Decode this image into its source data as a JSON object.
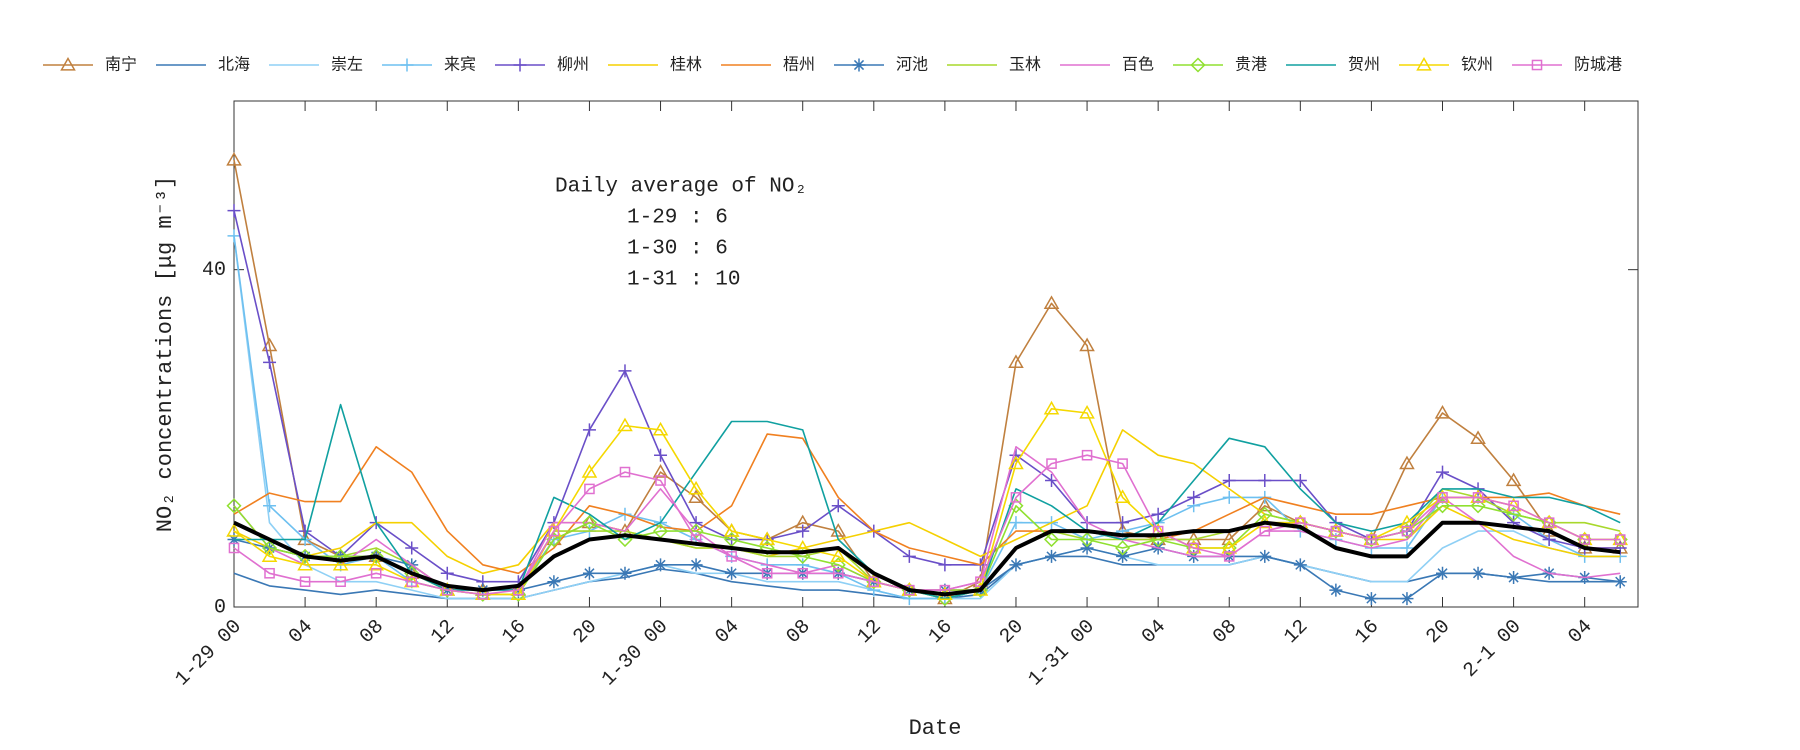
{
  "chart_data": {
    "type": "line",
    "ylabel": "NO₂ concentrations [μg m⁻³]",
    "xlabel": "Date",
    "annotation": [
      "Daily average of NO₂",
      "1-29 : 6",
      "1-30 : 6",
      "1-31 : 10"
    ],
    "x": [
      0,
      2,
      4,
      6,
      8,
      10,
      12,
      14,
      16,
      18,
      20,
      22,
      24,
      26,
      28,
      30,
      32,
      34,
      36,
      38,
      40,
      42,
      44,
      46,
      48,
      50,
      52,
      54,
      56,
      58,
      60,
      62,
      64,
      66,
      68,
      70,
      72,
      74,
      76,
      78
    ],
    "xlim": [
      0,
      79
    ],
    "xticks": [
      {
        "value": 0,
        "label": "1-29 00"
      },
      {
        "value": 4,
        "label": "04"
      },
      {
        "value": 8,
        "label": "08"
      },
      {
        "value": 12,
        "label": "12"
      },
      {
        "value": 16,
        "label": "16"
      },
      {
        "value": 20,
        "label": "20"
      },
      {
        "value": 24,
        "label": "1-30 00"
      },
      {
        "value": 28,
        "label": "04"
      },
      {
        "value": 32,
        "label": "08"
      },
      {
        "value": 36,
        "label": "12"
      },
      {
        "value": 40,
        "label": "16"
      },
      {
        "value": 44,
        "label": "20"
      },
      {
        "value": 48,
        "label": "1-31 00"
      },
      {
        "value": 52,
        "label": "04"
      },
      {
        "value": 56,
        "label": "08"
      },
      {
        "value": 60,
        "label": "12"
      },
      {
        "value": 64,
        "label": "16"
      },
      {
        "value": 68,
        "label": "20"
      },
      {
        "value": 72,
        "label": "2-1 00"
      },
      {
        "value": 76,
        "label": "04"
      }
    ],
    "ylim": [
      0,
      60
    ],
    "yticks": [
      0,
      40
    ],
    "series": [
      {
        "name": "南宁",
        "color": "#c0803f",
        "marker": "triangle",
        "values": [
          53,
          31,
          8,
          6,
          6,
          4,
          2,
          2,
          2,
          8,
          10,
          9,
          16,
          13,
          9,
          8,
          10,
          9,
          3,
          2,
          1,
          3,
          29,
          36,
          31,
          9,
          8,
          8,
          8,
          12,
          10,
          9,
          8,
          17,
          23,
          20,
          15,
          9,
          7,
          7
        ]
      },
      {
        "name": "北海",
        "color": "#3a78b5",
        "marker": "none",
        "values": [
          4,
          2.5,
          2,
          1.5,
          2,
          1.5,
          1,
          1,
          1,
          2,
          3,
          3.5,
          4.5,
          4,
          3,
          2.5,
          2,
          2,
          1.5,
          1,
          1,
          1.5,
          5,
          6,
          6,
          5,
          5,
          5,
          5,
          6,
          5,
          4,
          3,
          3,
          4,
          4,
          3.5,
          3,
          3,
          3
        ]
      },
      {
        "name": "崇左",
        "color": "#8fd0f5",
        "marker": "none",
        "values": [
          44,
          10,
          5,
          3,
          3,
          2,
          1,
          1,
          1,
          2,
          3,
          4,
          5,
          4,
          4,
          3,
          3,
          3,
          2,
          1,
          1,
          1,
          5,
          6,
          7,
          6,
          5,
          5,
          5,
          6,
          5,
          4,
          3,
          3,
          7,
          9,
          9,
          7,
          6,
          6
        ]
      },
      {
        "name": "来宾",
        "color": "#6ec0f0",
        "marker": "plus",
        "values": [
          44,
          12,
          8,
          5,
          6,
          3,
          2,
          2,
          2,
          8,
          9,
          11,
          10,
          8,
          6,
          5,
          5,
          4,
          2,
          1,
          1,
          2,
          10,
          10,
          8,
          9,
          10,
          12,
          13,
          13,
          9,
          8,
          7,
          7,
          13,
          13,
          11,
          8,
          6,
          6
        ]
      },
      {
        "name": "柳州",
        "color": "#6a4fc8",
        "marker": "plus",
        "values": [
          47,
          29,
          9,
          6,
          10,
          7,
          4,
          3,
          3,
          10,
          21,
          28,
          18,
          10,
          8,
          8,
          9,
          12,
          9,
          6,
          5,
          5,
          18,
          15,
          10,
          10,
          11,
          13,
          15,
          15,
          15,
          10,
          8,
          9,
          16,
          14,
          10,
          8,
          7,
          7
        ]
      },
      {
        "name": "桂林",
        "color": "#f5d000",
        "marker": "none",
        "values": [
          9,
          7,
          6,
          7,
          10,
          10,
          6,
          4,
          5,
          10,
          10,
          9,
          8,
          7,
          7,
          6,
          7,
          8,
          9,
          10,
          8,
          6,
          8,
          10,
          12,
          21,
          18,
          17,
          14,
          11,
          10,
          9,
          8,
          8,
          12,
          10,
          8,
          7,
          6,
          6
        ]
      },
      {
        "name": "梧州",
        "color": "#f08020",
        "marker": "none",
        "values": [
          11,
          13.5,
          12.5,
          12.5,
          19,
          16,
          9,
          5,
          4,
          7,
          12,
          11,
          9.5,
          9,
          12,
          20.5,
          20,
          13,
          9,
          7,
          6,
          5,
          9,
          9,
          9,
          8,
          8,
          9,
          11,
          13,
          12,
          11,
          11,
          12,
          13,
          13,
          13,
          13.5,
          12,
          11
        ]
      },
      {
        "name": "河池",
        "color": "#3a78b5",
        "marker": "star",
        "values": [
          8,
          7,
          6,
          6,
          6,
          5,
          2,
          2,
          2,
          3,
          4,
          4,
          5,
          5,
          4,
          4,
          4,
          4,
          3,
          2,
          2,
          2,
          5,
          6,
          7,
          6,
          7,
          6,
          6,
          6,
          5,
          2,
          1,
          1,
          4,
          4,
          3.5,
          4,
          3.5,
          3
        ]
      },
      {
        "name": "玉林",
        "color": "#a8d82c",
        "marker": "none",
        "values": [
          10,
          8,
          6,
          6,
          7,
          5,
          2,
          2,
          2,
          9,
          9,
          9,
          8,
          7,
          7,
          6,
          6,
          7,
          3,
          2,
          2,
          2,
          7,
          9,
          8,
          8,
          8,
          8,
          9,
          10,
          10,
          9,
          8,
          9,
          14,
          13,
          11,
          10,
          10,
          9
        ]
      },
      {
        "name": "百色",
        "color": "#e070d0",
        "marker": "none",
        "values": [
          12,
          7,
          5,
          5,
          8,
          5,
          2,
          2,
          2,
          10,
          10,
          9,
          14,
          9,
          6,
          5,
          4,
          5,
          3,
          2,
          2,
          3,
          19,
          16,
          10,
          8,
          7,
          6,
          6,
          9,
          9,
          8,
          7,
          8,
          13,
          10,
          6,
          4,
          3.5,
          4
        ]
      },
      {
        "name": "贵港",
        "color": "#90e030",
        "marker": "diamond",
        "values": [
          12,
          7,
          6,
          6,
          6,
          4,
          2,
          1.5,
          1.5,
          8,
          10,
          8,
          9,
          9,
          8,
          7,
          6,
          5,
          3,
          2,
          1,
          2,
          12,
          8,
          8,
          7,
          8,
          7,
          7,
          11,
          10,
          9,
          8,
          9,
          12,
          12,
          11,
          10,
          8,
          8
        ]
      },
      {
        "name": "贺州",
        "color": "#10a0a0",
        "marker": "none",
        "values": [
          8,
          8,
          8,
          24,
          10,
          4,
          2,
          2,
          2,
          13,
          11,
          8,
          10,
          16,
          22,
          22,
          21,
          8,
          4,
          2,
          1,
          2,
          14,
          12,
          9,
          8,
          10,
          15,
          20,
          19,
          14,
          10,
          9,
          10,
          14,
          14,
          13,
          13,
          12,
          10
        ]
      },
      {
        "name": "钦州",
        "color": "#f5d800",
        "marker": "triangle",
        "values": [
          9,
          6,
          5,
          5,
          5,
          3,
          2,
          1.5,
          1.5,
          9,
          16,
          21.5,
          21,
          14,
          9,
          8,
          7,
          6,
          3,
          2,
          1.5,
          2,
          17,
          23.5,
          23,
          13,
          9,
          7,
          7,
          10,
          10,
          9,
          8,
          10,
          13,
          13,
          12,
          10,
          8,
          8
        ]
      },
      {
        "name": "防城港",
        "color": "#e070d0",
        "marker": "square",
        "values": [
          7,
          4,
          3,
          3,
          4,
          3,
          2,
          1.5,
          2,
          9,
          14,
          16,
          15,
          8,
          6,
          4,
          4,
          4,
          3,
          2,
          2,
          3,
          13,
          17,
          18,
          17,
          9,
          7,
          6,
          9,
          10,
          9,
          8,
          9,
          13,
          13,
          12,
          10,
          8,
          8
        ]
      },
      {
        "color": "#000000",
        "marker": "none",
        "width": 4,
        "values": [
          10,
          8,
          6,
          5.5,
          6,
          4,
          2.5,
          2,
          2.5,
          6,
          8,
          8.5,
          8,
          7.5,
          7,
          6.5,
          6.5,
          7,
          4,
          2,
          1.5,
          2,
          7,
          9,
          9,
          8.5,
          8.5,
          9,
          9,
          10,
          9.5,
          7,
          6,
          6,
          10,
          10,
          9.5,
          9,
          7,
          6.5
        ]
      }
    ]
  }
}
